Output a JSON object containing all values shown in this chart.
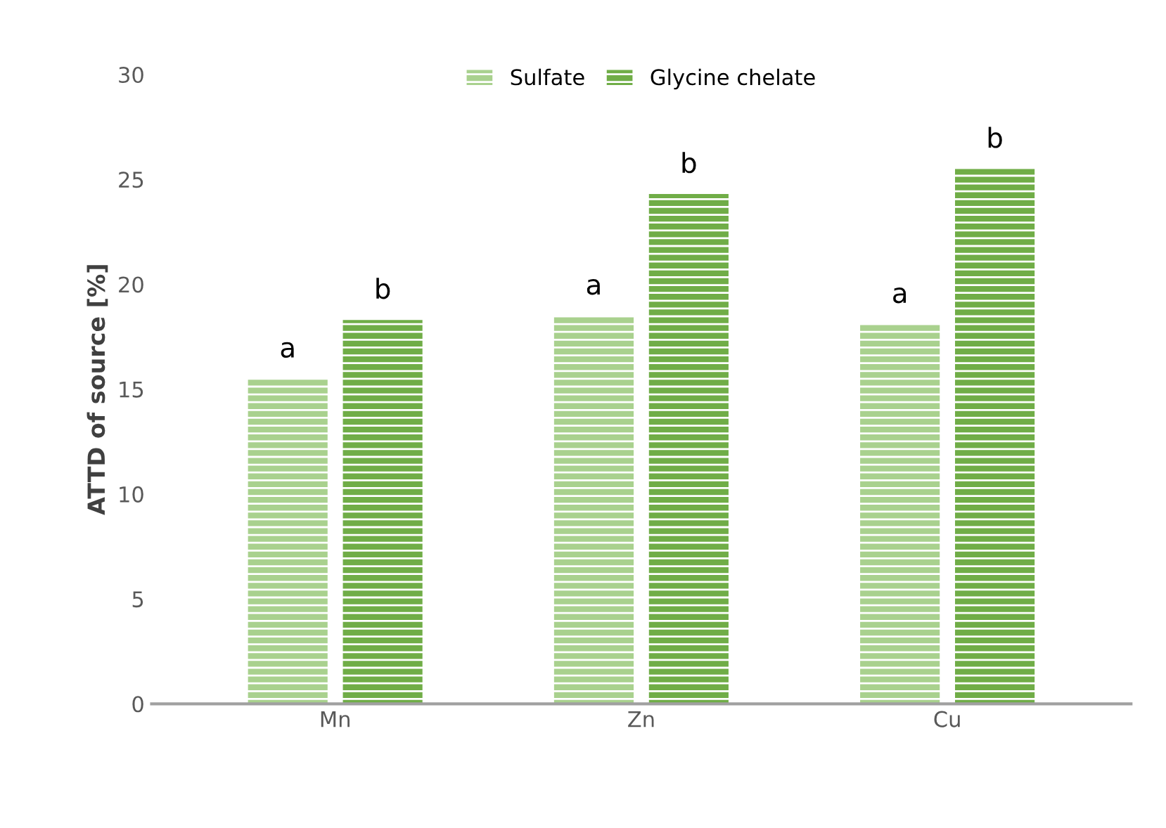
{
  "chart_data": {
    "type": "bar",
    "ylabel": "ATTD of source [%]",
    "categories": [
      "Mn",
      "Zn",
      "Cu"
    ],
    "series": [
      {
        "name": "Sulfate",
        "color": "#a9d18e",
        "values": [
          15.5,
          18.5,
          18.1
        ]
      },
      {
        "name": "Glycine chelate",
        "color": "#70ad47",
        "values": [
          18.3,
          24.3,
          25.5
        ]
      }
    ],
    "ylim": [
      0,
      30
    ],
    "yticks": [
      0,
      5,
      10,
      15,
      20,
      25,
      30
    ],
    "grid": false,
    "legend": "top",
    "annotations": [
      "a",
      "b",
      "a",
      "b",
      "a",
      "b"
    ]
  }
}
